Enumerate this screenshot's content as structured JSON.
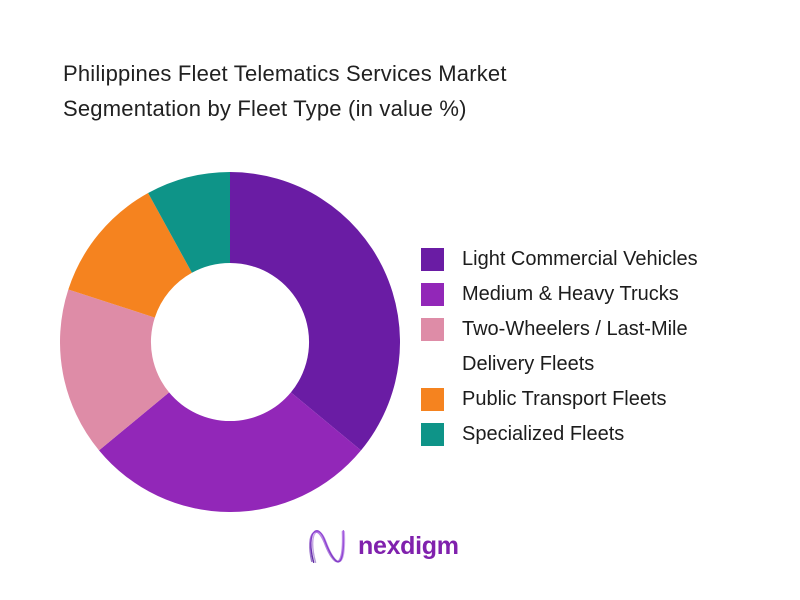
{
  "chart_data": {
    "type": "pie",
    "subtype": "donut",
    "title": "Philippines Fleet Telematics Services Market Segmentation by Fleet Type (in value %)",
    "categories": [
      "Light Commercial Vehicles",
      "Medium & Heavy Trucks",
      "Two-Wheelers / Last-Mile Delivery Fleets",
      "Public Transport Fleets",
      "Specialized Fleets"
    ],
    "values": [
      36,
      28,
      16,
      12,
      8
    ],
    "unit": "%",
    "values_estimated_from_arc_angles": true,
    "colors": [
      "#6A1CA4",
      "#9227B8",
      "#DE8CA7",
      "#F5831F",
      "#0E9488"
    ],
    "start_position": "12 o'clock, clockwise",
    "inner_radius_ratio": 0.465,
    "legend_position": "right",
    "data_labels_shown": false
  },
  "legend": {
    "items": [
      "Light Commercial Vehicles",
      "Medium & Heavy Trucks",
      "Two-Wheelers / Last-Mile\nDelivery Fleets",
      "Public Transport Fleets",
      "Specialized Fleets"
    ]
  },
  "footer": {
    "brand_name": "nexdigm",
    "brand_color": "#8021AD"
  }
}
